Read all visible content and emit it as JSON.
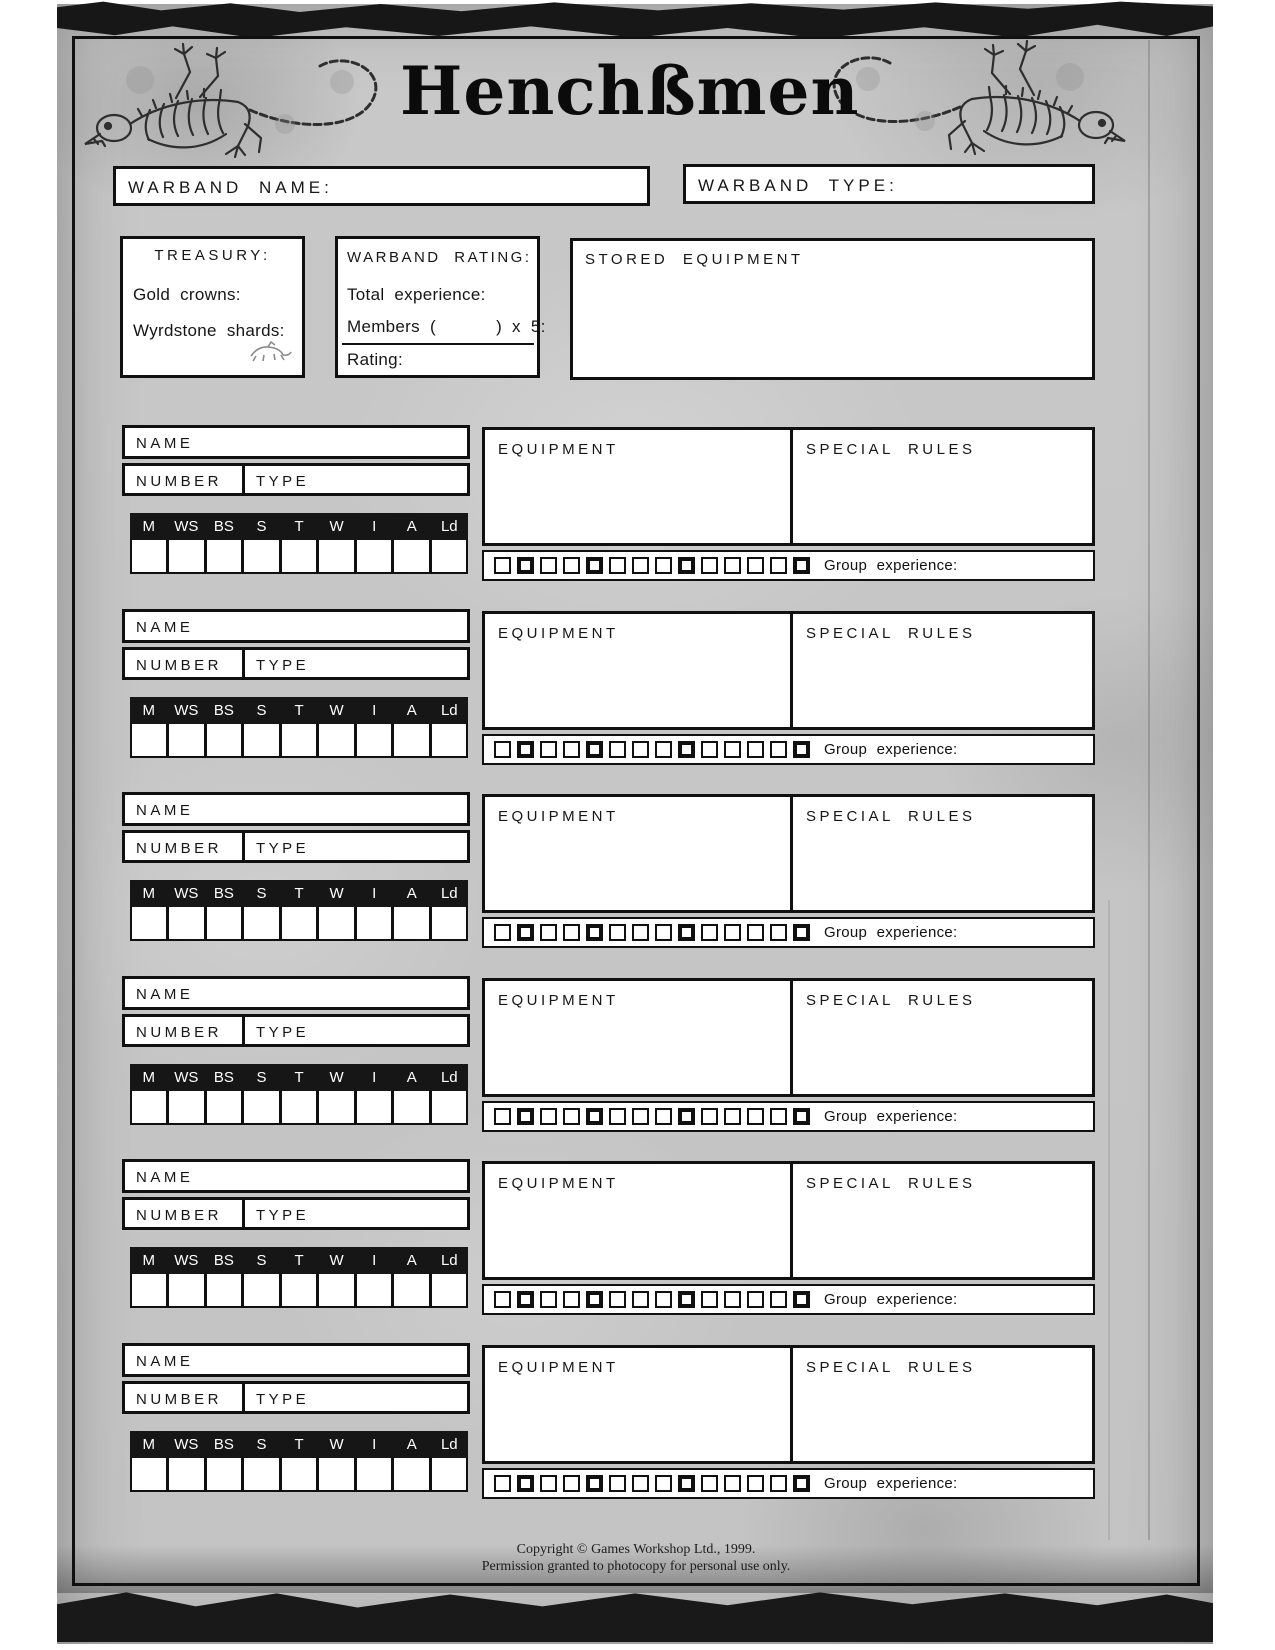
{
  "title": "Henchßmen",
  "header": {
    "warband_name_label": "WARBAND NAME:",
    "warband_type_label": "WARBAND TYPE:"
  },
  "treasury": {
    "title": "TREASURY:",
    "gold_crowns_label": "Gold crowns:",
    "wyrdstone_shards_label": "Wyrdstone shards:",
    "rat_icon": "rat-icon"
  },
  "warband_rating": {
    "title": "WARBAND RATING:",
    "total_experience_label": "Total experience:",
    "members_label": "Members (      ) x 5:",
    "rating_label": "Rating:"
  },
  "stored_equipment": {
    "title": "STORED EQUIPMENT"
  },
  "henchman_blocks": {
    "count": 6,
    "template": {
      "name_label": "NAME",
      "number_label": "NUMBER",
      "type_label": "TYPE",
      "stat_columns": [
        "M",
        "WS",
        "BS",
        "S",
        "T",
        "W",
        "I",
        "A",
        "Ld"
      ],
      "equipment_label": "EQUIPMENT",
      "special_rules_label": "SPECIAL RULES",
      "group_experience_label": "Group experience:",
      "experience_boxes_count": 14,
      "experience_bold_positions": [
        2,
        5,
        9,
        14
      ]
    }
  },
  "decorations": {
    "left_illustration": "skeleton-rat-left",
    "right_illustration": "skeleton-rat-right"
  },
  "footer": {
    "line1": "Copyright © Games Workshop Ltd., 1999.",
    "line2": "Permission granted to photocopy for personal use only."
  },
  "colors": {
    "ink": "#101010",
    "stats_header_bg": "#161616",
    "parchment": "#c6c6c6",
    "box_fill": "#ffffff"
  }
}
